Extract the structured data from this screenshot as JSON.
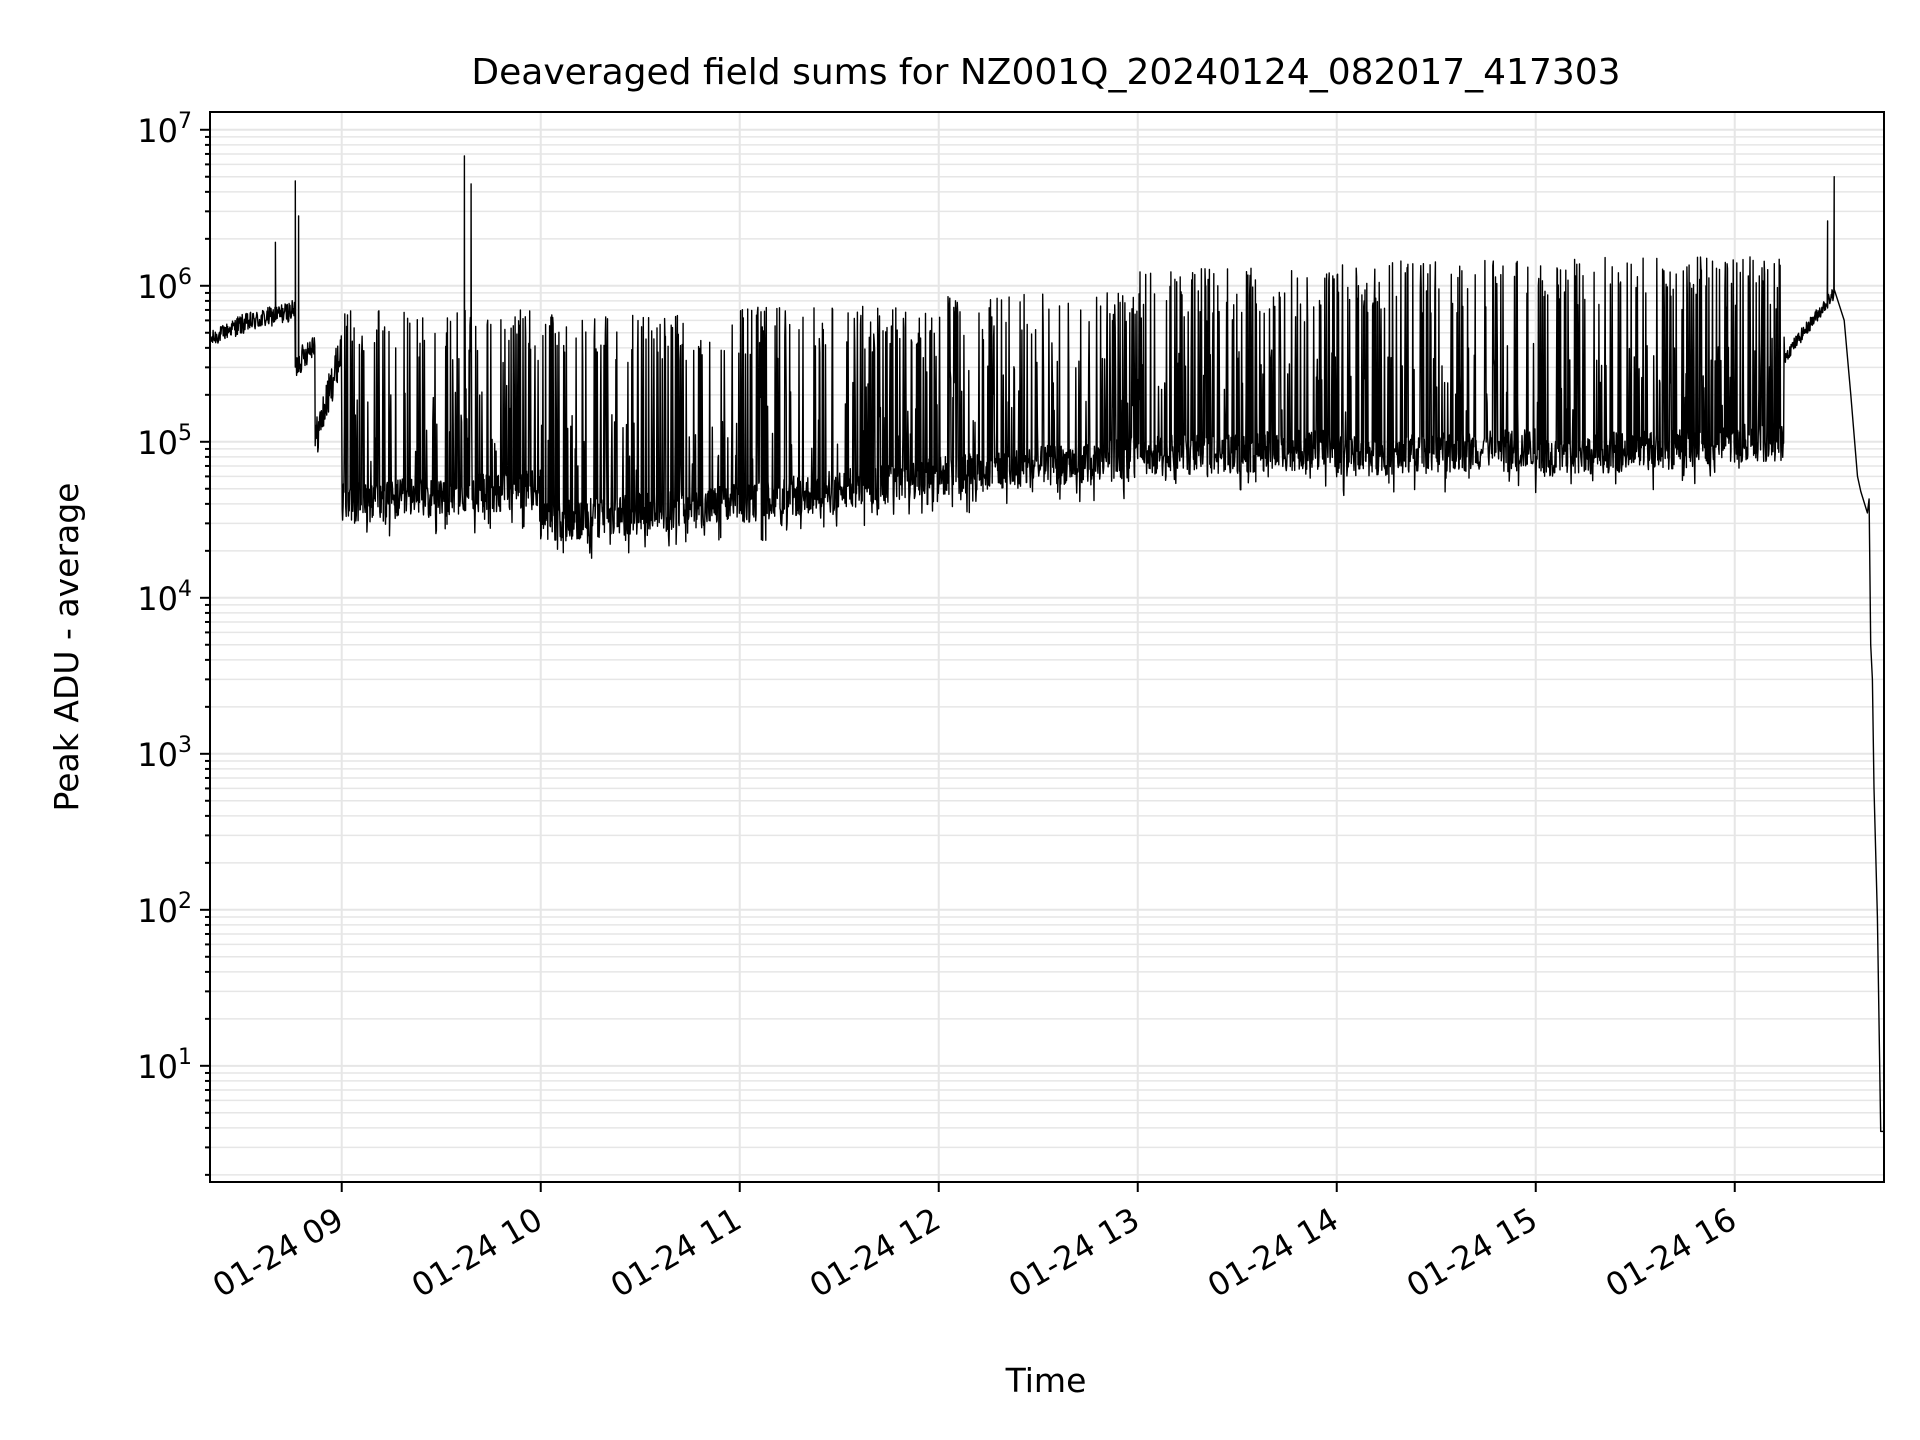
{
  "chart_data": {
    "type": "line",
    "title": "Deaveraged field sums for NZ001Q_20240124_082017_417303",
    "xlabel": "Time",
    "ylabel": "Peak ADU - average",
    "yscale": "log",
    "ylim": [
      1.8,
      13000000
    ],
    "xlim": [
      "2024-01-24 08:20:17",
      "2024-01-24 16:45:00"
    ],
    "grid": true,
    "legend": "none",
    "line_color": "#000000",
    "grid_color": "#e6e6e6",
    "x_ticks": [
      {
        "value": "2024-01-24 09:00",
        "label": "01-24 09"
      },
      {
        "value": "2024-01-24 10:00",
        "label": "01-24 10"
      },
      {
        "value": "2024-01-24 11:00",
        "label": "01-24 11"
      },
      {
        "value": "2024-01-24 12:00",
        "label": "01-24 12"
      },
      {
        "value": "2024-01-24 13:00",
        "label": "01-24 13"
      },
      {
        "value": "2024-01-24 14:00",
        "label": "01-24 14"
      },
      {
        "value": "2024-01-24 15:00",
        "label": "01-24 15"
      },
      {
        "value": "2024-01-24 16:00",
        "label": "01-24 16"
      }
    ],
    "y_ticks": [
      {
        "value": 10,
        "base": "10",
        "exp": "1"
      },
      {
        "value": 100,
        "base": "10",
        "exp": "2"
      },
      {
        "value": 1000,
        "base": "10",
        "exp": "3"
      },
      {
        "value": 10000,
        "base": "10",
        "exp": "4"
      },
      {
        "value": 100000,
        "base": "10",
        "exp": "5"
      },
      {
        "value": 1000000,
        "base": "10",
        "exp": "6"
      },
      {
        "value": 10000000,
        "base": "10",
        "exp": "7"
      }
    ],
    "series": [
      {
        "segments": [
          {
            "start": "2024-01-24 08:20:17",
            "end": "2024-01-24 08:28",
            "base_low": 450000,
            "base_high": 550000,
            "peak": 850000,
            "noise": 0.12
          },
          {
            "start": "2024-01-24 08:28",
            "end": "2024-01-24 08:46",
            "base_low": 550000,
            "base_high": 700000,
            "peak": 1900000,
            "noise": 0.15
          },
          {
            "start": "2024-01-24 08:46",
            "end": "2024-01-24 08:52",
            "base_low": 300000,
            "base_high": 450000,
            "peak": 900000,
            "noise": 0.2
          },
          {
            "start": "2024-01-24 08:52",
            "end": "2024-01-24 09:00",
            "base_low": 100000,
            "base_high": 400000,
            "peak": 700000,
            "noise": 0.3
          },
          {
            "start": "2024-01-24 09:00",
            "end": "2024-01-24 10:00",
            "base_low": 40000,
            "base_high": 50000,
            "peak": 700000,
            "noise": 0.3
          },
          {
            "start": "2024-01-24 10:00",
            "end": "2024-01-24 11:00",
            "base_low": 30000,
            "base_high": 40000,
            "peak": 650000,
            "noise": 0.3
          },
          {
            "start": "2024-01-24 11:00",
            "end": "2024-01-24 12:00",
            "base_low": 40000,
            "base_high": 60000,
            "peak": 750000,
            "noise": 0.3
          },
          {
            "start": "2024-01-24 12:00",
            "end": "2024-01-24 13:00",
            "base_low": 60000,
            "base_high": 80000,
            "peak": 900000,
            "noise": 0.3
          },
          {
            "start": "2024-01-24 13:00",
            "end": "2024-01-24 14:00",
            "base_low": 80000,
            "base_high": 90000,
            "peak": 1300000,
            "noise": 0.3
          },
          {
            "start": "2024-01-24 14:00",
            "end": "2024-01-24 15:00",
            "base_low": 80000,
            "base_high": 90000,
            "peak": 1450000,
            "noise": 0.3
          },
          {
            "start": "2024-01-24 15:00",
            "end": "2024-01-24 16:15",
            "base_low": 80000,
            "base_high": 100000,
            "peak": 1550000,
            "noise": 0.3
          },
          {
            "start": "2024-01-24 16:15",
            "end": "2024-01-24 16:30",
            "base_low": 350000,
            "base_high": 900000,
            "peak": 1000000,
            "noise": 0.1
          }
        ],
        "spikes": [
          {
            "t": "2024-01-24 08:46",
            "v": 4700000
          },
          {
            "t": "2024-01-24 08:40",
            "v": 1900000
          },
          {
            "t": "2024-01-24 08:47",
            "v": 2800000
          },
          {
            "t": "2024-01-24 09:37",
            "v": 6800000
          },
          {
            "t": "2024-01-24 09:39",
            "v": 4500000
          },
          {
            "t": "2024-01-24 16:28",
            "v": 2600000
          },
          {
            "t": "2024-01-24 16:30",
            "v": 5000000
          }
        ],
        "tail": [
          {
            "t": "2024-01-24 16:30",
            "v": 950000
          },
          {
            "t": "2024-01-24 16:33",
            "v": 600000
          },
          {
            "t": "2024-01-24 16:35",
            "v": 200000
          },
          {
            "t": "2024-01-24 16:37",
            "v": 60000
          },
          {
            "t": "2024-01-24 16:38",
            "v": 48000
          },
          {
            "t": "2024-01-24 16:40",
            "v": 35000
          },
          {
            "t": "2024-01-24 16:40.5",
            "v": 43000
          },
          {
            "t": "2024-01-24 16:41",
            "v": 5000
          },
          {
            "t": "2024-01-24 16:41.5",
            "v": 3000
          },
          {
            "t": "2024-01-24 16:42",
            "v": 600
          },
          {
            "t": "2024-01-24 16:43",
            "v": 90
          },
          {
            "t": "2024-01-24 16:44",
            "v": 3.8
          },
          {
            "t": "2024-01-24 16:45",
            "v": 3.8
          }
        ]
      }
    ]
  }
}
